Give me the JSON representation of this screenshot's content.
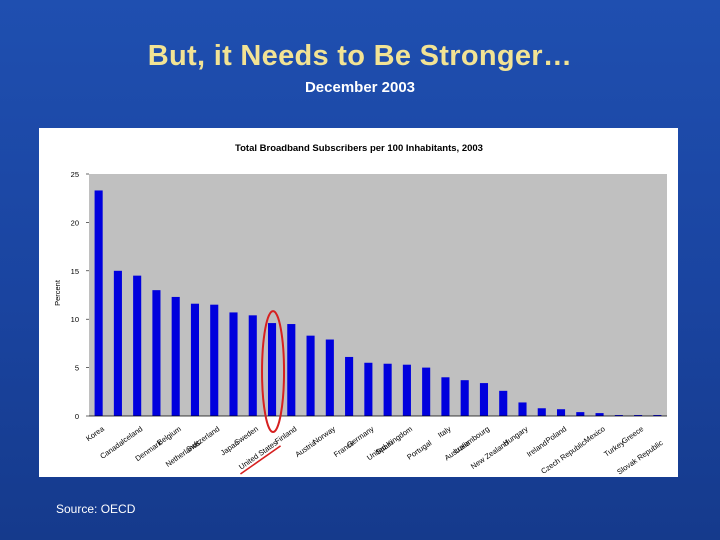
{
  "slide": {
    "title": "But, it Needs to Be Stronger…",
    "subtitle": "December 2003",
    "source": "Source:  OECD"
  },
  "colors": {
    "bar": "#0000dd",
    "plot_background": "#c0c0c0",
    "highlight": "#d62020",
    "title": "#f2e394"
  },
  "chart_data": {
    "type": "bar",
    "title": "Total Broadband Subscribers per 100 Inhabitants, 2003",
    "xlabel": "",
    "ylabel": "Percent",
    "ylim": [
      0,
      25
    ],
    "yticks": [
      0,
      5,
      10,
      15,
      20,
      25
    ],
    "grid": false,
    "legend": "none",
    "highlighted_category": "United States",
    "categories": [
      "Korea",
      "Canada",
      "Iceland",
      "Denmark",
      "Belgium",
      "Netherlands",
      "Switzerland",
      "Japan",
      "Sweden",
      "United States",
      "Finland",
      "Austria",
      "Norway",
      "France",
      "Germany",
      "Spain",
      "United Kingdom",
      "Portugal",
      "Italy",
      "Australia",
      "Luxembourg",
      "New Zealand",
      "Hungary",
      "Ireland",
      "Poland",
      "Czech Republic",
      "Mexico",
      "Turkey",
      "Greece",
      "Slovak Republic"
    ],
    "values": [
      23.3,
      15.0,
      14.5,
      13.0,
      12.3,
      11.6,
      11.5,
      10.7,
      10.4,
      9.6,
      9.5,
      8.3,
      7.9,
      6.1,
      5.5,
      5.4,
      5.3,
      5.0,
      4.0,
      3.7,
      3.4,
      2.6,
      1.4,
      0.8,
      0.7,
      0.4,
      0.3,
      0.1,
      0.1,
      0.1
    ]
  }
}
